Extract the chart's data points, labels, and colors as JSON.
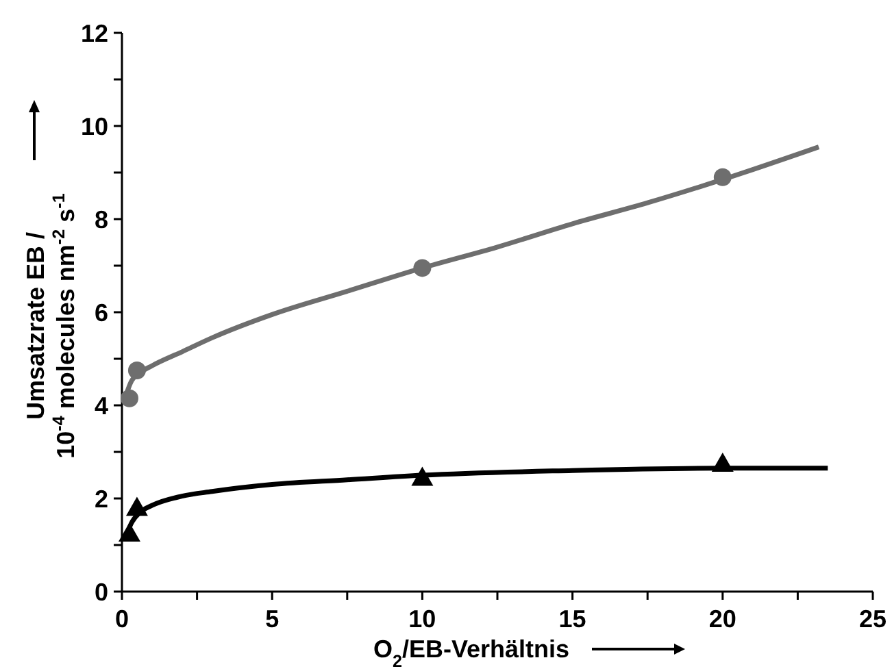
{
  "chart_data": {
    "type": "scatter",
    "xlabel": "O$_{2}$/EB-Verhältnis",
    "ylabel": "Umsatzrate EB /\n10$^{-4}$ molecules nm$^{-2}$ s$^{-1}$",
    "xlim": [
      0,
      25
    ],
    "ylim": [
      0,
      12
    ],
    "xticks": [
      0,
      {
        "value": 2.5,
        "label": null
      },
      5,
      {
        "value": 7.5,
        "label": null
      },
      10,
      {
        "value": 12.5,
        "label": null
      },
      15,
      {
        "value": 17.5,
        "label": null
      },
      20,
      {
        "value": 22.5,
        "label": null
      },
      25
    ],
    "yticks": [
      0,
      {
        "value": 1,
        "label": null
      },
      2,
      {
        "value": 3,
        "label": null
      },
      4,
      {
        "value": 5,
        "label": null
      },
      6,
      {
        "value": 7,
        "label": null
      },
      8,
      {
        "value": 9,
        "label": null
      },
      10,
      {
        "value": 11,
        "label": null
      },
      12
    ],
    "grid": false,
    "series": [
      {
        "type": "line",
        "marker": "none",
        "color": "#6e6e6e",
        "x": [
          0.15,
          0.3,
          0.6,
          1,
          2,
          3,
          5,
          7.5,
          10,
          12.5,
          15,
          17.5,
          20,
          23.2
        ],
        "values": [
          4.25,
          4.5,
          4.7,
          4.85,
          5.15,
          5.45,
          5.95,
          6.45,
          6.95,
          7.4,
          7.9,
          8.35,
          8.85,
          9.55
        ]
      },
      {
        "type": "line",
        "marker": "none",
        "color": "#000000",
        "x": [
          0.15,
          0.3,
          0.6,
          1,
          2,
          3,
          5,
          7.5,
          10,
          15,
          20,
          23.5
        ],
        "values": [
          1.2,
          1.45,
          1.7,
          1.85,
          2.05,
          2.15,
          2.3,
          2.4,
          2.5,
          2.6,
          2.65,
          2.65
        ]
      },
      {
        "marker": "circle",
        "color": "#6e6e6e",
        "x": [
          0.25,
          0.5,
          10,
          20
        ],
        "values": [
          4.15,
          4.75,
          6.95,
          8.9
        ]
      },
      {
        "marker": "triangle",
        "color": "#000000",
        "x": [
          0.25,
          0.5,
          10,
          20
        ],
        "values": [
          1.25,
          1.8,
          2.45,
          2.75
        ]
      }
    ]
  }
}
